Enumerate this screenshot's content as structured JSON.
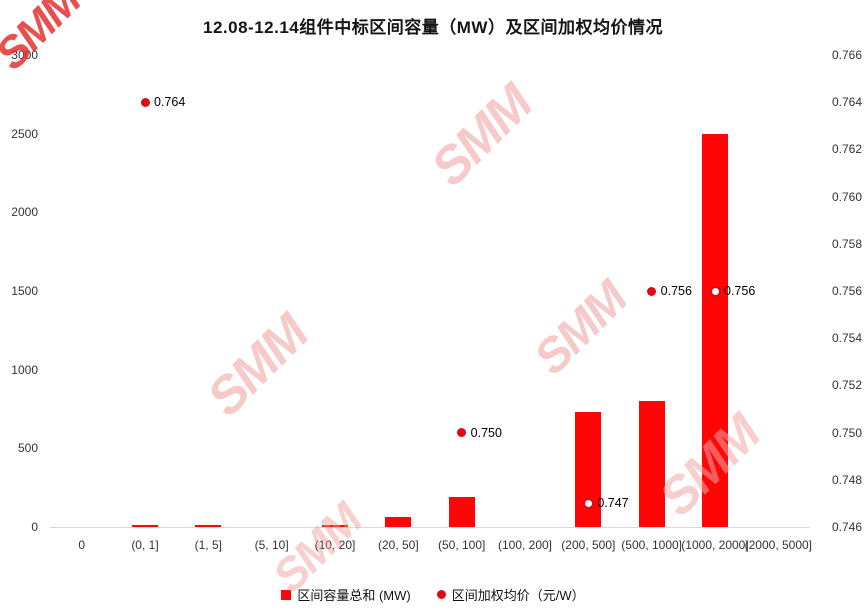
{
  "title": "12.08-12.14组件中标区间容量（MW）及区间加权均价情况",
  "watermark": {
    "text": "SMM"
  },
  "colors": {
    "bar": "#FE0606",
    "point": "#E30613",
    "axis_text": "#333333",
    "watermark_strong": "rgba(226,36,36,0.8)",
    "watermark_light": "rgba(240,150,150,0.5)"
  },
  "legend": {
    "bar_label": "区间容量总和 (MW)",
    "dot_label": "区间加权均价（元/W）"
  },
  "chart_data": {
    "type": "combo-bar-scatter",
    "title": "12.08-12.14组件中标区间容量（MW）及区间加权均价情况",
    "categories": [
      "0",
      "(0, 1]",
      "(1, 5]",
      "(5, 10]",
      "(10, 20]",
      "(20, 50]",
      "(50, 100]",
      "(100, 200]",
      "(200, 500]",
      "(500, 1000]",
      "(1000, 2000]",
      "(2000, 5000]"
    ],
    "series": [
      {
        "name": "区间容量总和 (MW)",
        "type": "bar",
        "axis": "left",
        "values": [
          0,
          15,
          15,
          0,
          15,
          65,
          190,
          0,
          730,
          800,
          2500,
          0
        ]
      },
      {
        "name": "区间加权均价（元/W）",
        "type": "scatter",
        "axis": "right",
        "values": [
          null,
          0.764,
          null,
          null,
          null,
          null,
          0.75,
          null,
          0.747,
          0.756,
          0.756,
          null
        ],
        "labels": [
          "",
          "0.764",
          "",
          "",
          "",
          "",
          "0.750",
          "",
          "0.747",
          "0.756",
          "0.756",
          ""
        ]
      }
    ],
    "left_axis": {
      "min": 0,
      "max": 3000,
      "ticks": [
        0,
        500,
        1000,
        1500,
        2000,
        2500,
        3000
      ]
    },
    "right_axis": {
      "min": 0.746,
      "max": 0.766,
      "ticks": [
        "0.746",
        "0.748",
        "0.750",
        "0.752",
        "0.754",
        "0.756",
        "0.758",
        "0.760",
        "0.762",
        "0.764",
        "0.766"
      ]
    },
    "grid": false,
    "legend_position": "bottom"
  }
}
